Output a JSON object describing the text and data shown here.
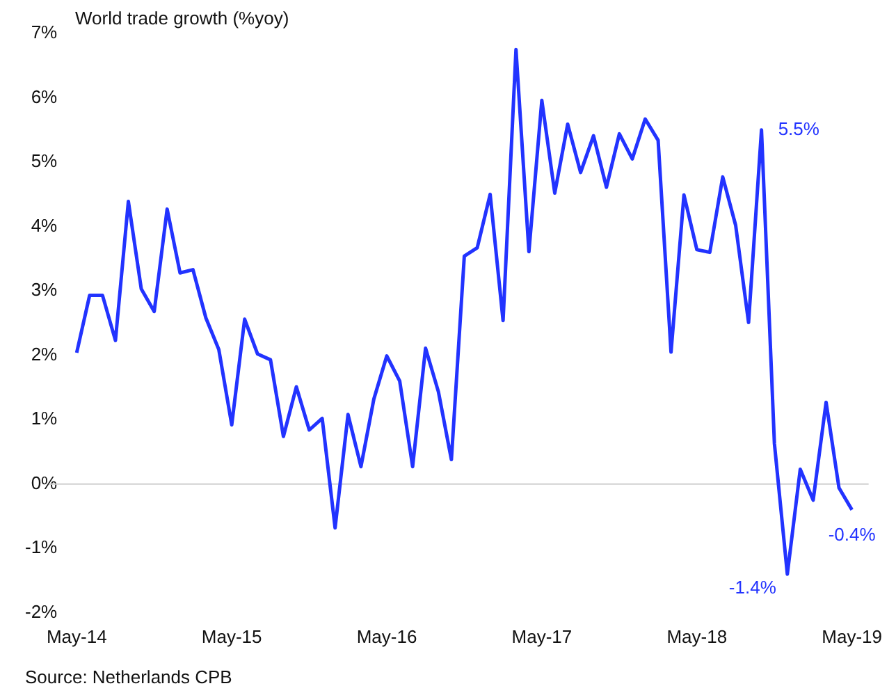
{
  "chart_data": {
    "type": "line",
    "ylabel": "World trade growth (%yoy)",
    "categories": [
      "May-14",
      null,
      null,
      null,
      null,
      null,
      null,
      null,
      null,
      null,
      null,
      null,
      "May-15",
      null,
      null,
      null,
      null,
      null,
      null,
      null,
      null,
      null,
      null,
      null,
      "May-16",
      null,
      null,
      null,
      null,
      null,
      null,
      null,
      null,
      null,
      null,
      null,
      "May-17",
      null,
      null,
      null,
      null,
      null,
      null,
      null,
      null,
      null,
      null,
      null,
      "May-18",
      null,
      null,
      null,
      null,
      null,
      null,
      null,
      null,
      null,
      null,
      null,
      "May-19"
    ],
    "series": [
      {
        "color": "#2233ff",
        "values": [
          2.04,
          2.93,
          2.93,
          2.23,
          4.39,
          3.03,
          2.68,
          4.27,
          3.28,
          3.33,
          2.58,
          2.09,
          0.92,
          2.56,
          2.02,
          1.93,
          0.74,
          1.51,
          0.84,
          1.02,
          -0.68,
          1.08,
          0.27,
          1.32,
          1.99,
          1.6,
          0.27,
          2.11,
          1.43,
          0.38,
          3.54,
          3.67,
          4.5,
          2.54,
          6.75,
          3.61,
          5.96,
          4.52,
          5.59,
          4.84,
          5.41,
          4.61,
          5.44,
          5.05,
          5.67,
          5.34,
          2.05,
          4.49,
          3.64,
          3.6,
          4.77,
          4.02,
          2.51,
          5.5,
          0.63,
          -1.4,
          0.23,
          -0.25,
          1.27,
          -0.06,
          -0.4
        ],
        "value_labels": [
          null,
          null,
          null,
          null,
          null,
          null,
          null,
          null,
          null,
          null,
          null,
          null,
          null,
          null,
          null,
          null,
          null,
          null,
          null,
          null,
          null,
          null,
          null,
          null,
          null,
          null,
          null,
          null,
          null,
          null,
          null,
          null,
          null,
          null,
          null,
          null,
          null,
          null,
          null,
          null,
          null,
          null,
          null,
          null,
          null,
          null,
          null,
          null,
          null,
          null,
          null,
          null,
          null,
          "5.5%",
          null,
          "-1.4%",
          null,
          null,
          null,
          null,
          "-0.4%"
        ]
      }
    ],
    "ylim": [
      -2,
      7
    ],
    "yticks": [
      {
        "value": -2,
        "label": "-2%"
      },
      {
        "value": -1,
        "label": "-1%"
      },
      {
        "value": 0,
        "label": "0%"
      },
      {
        "value": 1,
        "label": "1%"
      },
      {
        "value": 2,
        "label": "2%"
      },
      {
        "value": 3,
        "label": "3%"
      },
      {
        "value": 4,
        "label": "4%"
      },
      {
        "value": 5,
        "label": "5%"
      },
      {
        "value": 6,
        "label": "6%"
      },
      {
        "value": 7,
        "label": "7%"
      }
    ],
    "ref_lines": [
      {
        "axis": "y",
        "value": 0,
        "color": "#d0d0d0"
      }
    ],
    "grid": false,
    "legend": false,
    "marker": "none",
    "line_style": "solid",
    "annotations": [
      "Source: Netherlands CPB"
    ]
  }
}
